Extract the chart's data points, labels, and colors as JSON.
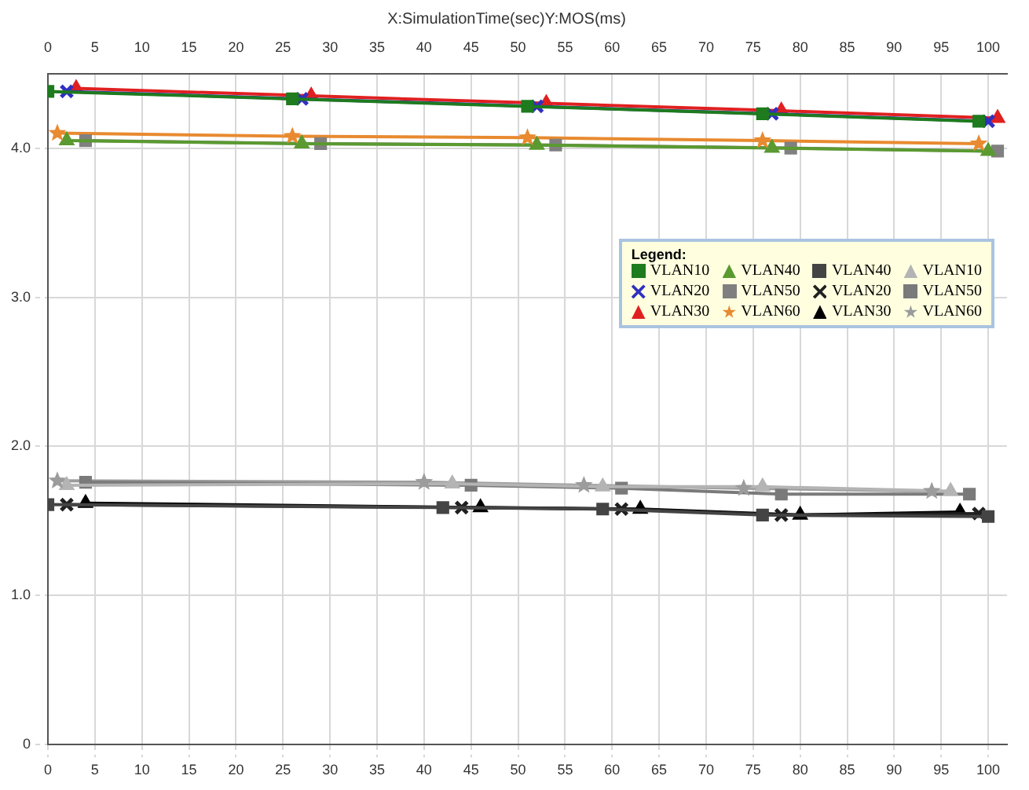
{
  "chart_data": {
    "type": "line",
    "title": "X:SimulationTime(sec)Y:MOS(ms)",
    "legend_title": "Legend:",
    "xlim": [
      0,
      102
    ],
    "xticks": [
      0,
      5,
      10,
      15,
      20,
      25,
      30,
      35,
      40,
      45,
      50,
      55,
      60,
      65,
      70,
      75,
      80,
      85,
      90,
      95,
      100
    ],
    "x2lim": [
      0,
      102
    ],
    "x2ticks": [
      0,
      5,
      10,
      15,
      20,
      25,
      30,
      35,
      40,
      45,
      50,
      55,
      60,
      65,
      70,
      75,
      80,
      85,
      90,
      95,
      100
    ],
    "ylim": [
      0,
      4.5
    ],
    "yticks": [
      0,
      {
        "value": 1,
        "label": "1.0"
      },
      {
        "value": 2,
        "label": "2.0"
      },
      {
        "value": 3,
        "label": "3.0"
      },
      {
        "value": 4,
        "label": "4.0"
      }
    ],
    "grid": true,
    "legend": "right",
    "line_style": "solid",
    "series": [
      {
        "name": "VLAN10",
        "color": "#1e7b1e",
        "marker": "square",
        "x": [
          0,
          26,
          51,
          76,
          99
        ],
        "values": [
          4.38,
          4.33,
          4.28,
          4.23,
          4.18
        ]
      },
      {
        "name": "VLAN20",
        "color": "#3030c0",
        "marker": "cross",
        "x": [
          2,
          27,
          52,
          77,
          100
        ],
        "values": [
          4.38,
          4.33,
          4.28,
          4.23,
          4.18
        ]
      },
      {
        "name": "VLAN30",
        "color": "#e02020",
        "marker": "triangle",
        "x": [
          3,
          28,
          53,
          78,
          101
        ],
        "values": [
          4.4,
          4.35,
          4.3,
          4.25,
          4.2
        ]
      },
      {
        "name": "VLAN40",
        "color": "#5a9a30",
        "marker": "triangle",
        "x": [
          2,
          27,
          52,
          77,
          100
        ],
        "values": [
          4.05,
          4.03,
          4.02,
          4.0,
          3.98
        ]
      },
      {
        "name": "VLAN50",
        "color": "#808080",
        "marker": "square",
        "x": [
          4,
          29,
          54,
          79,
          101
        ],
        "values": [
          4.05,
          4.03,
          4.02,
          4.0,
          3.98
        ]
      },
      {
        "name": "VLAN60",
        "color": "#e88a30",
        "marker": "star",
        "x": [
          1,
          26,
          51,
          76,
          99
        ],
        "values": [
          4.1,
          4.08,
          4.07,
          4.05,
          4.03
        ]
      },
      {
        "name": "VLAN40",
        "color": "#444444",
        "marker": "square",
        "x": [
          0,
          42,
          59,
          76,
          100
        ],
        "values": [
          1.61,
          1.59,
          1.58,
          1.54,
          1.53
        ]
      },
      {
        "name": "VLAN20",
        "color": "#202020",
        "marker": "cross",
        "x": [
          2,
          44,
          61,
          78,
          99
        ],
        "values": [
          1.61,
          1.59,
          1.58,
          1.54,
          1.55
        ]
      },
      {
        "name": "VLAN30",
        "color": "#000000",
        "marker": "triangle",
        "x": [
          4,
          46,
          63,
          80,
          97
        ],
        "values": [
          1.62,
          1.59,
          1.58,
          1.54,
          1.56
        ]
      },
      {
        "name": "VLAN10",
        "color": "#b4b4b4",
        "marker": "triangle",
        "x": [
          2,
          43,
          59,
          76,
          96
        ],
        "values": [
          1.74,
          1.75,
          1.73,
          1.73,
          1.7
        ]
      },
      {
        "name": "VLAN50",
        "color": "#7a7a7a",
        "marker": "square",
        "x": [
          4,
          45,
          61,
          78,
          98
        ],
        "values": [
          1.76,
          1.74,
          1.72,
          1.68,
          1.68
        ]
      },
      {
        "name": "VLAN60",
        "color": "#9c9c9c",
        "marker": "star",
        "x": [
          1,
          40,
          57,
          74,
          94
        ],
        "values": [
          1.77,
          1.76,
          1.74,
          1.72,
          1.7
        ]
      }
    ]
  }
}
